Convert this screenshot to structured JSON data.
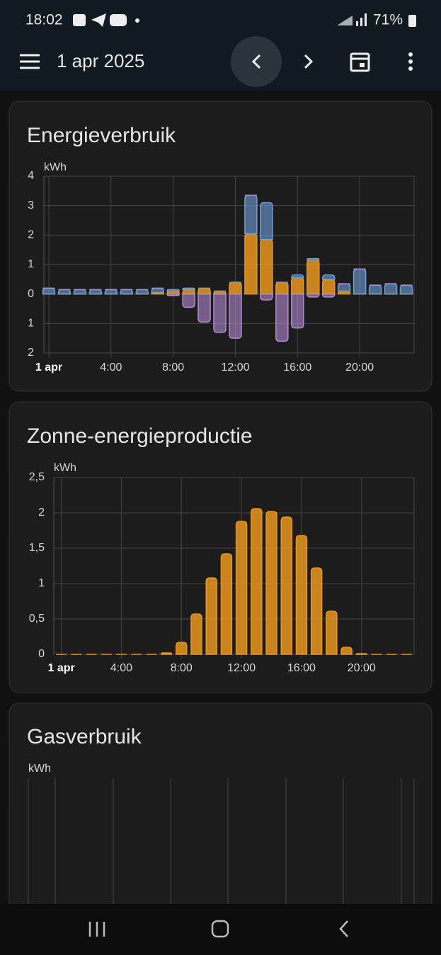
{
  "status_bar": {
    "time": "18:02",
    "battery": "71%"
  },
  "app_bar": {
    "title": "1 apr 2025"
  },
  "chart_data": [
    {
      "type": "bar",
      "stacked": true,
      "title": "Energieverbruik",
      "y_label": "kWh",
      "categories": [
        "1 apr",
        null,
        null,
        null,
        "4:00",
        null,
        null,
        null,
        "8:00",
        null,
        null,
        null,
        "12:00",
        null,
        null,
        null,
        "16:00",
        null,
        null,
        null,
        "20:00",
        null,
        null,
        null
      ],
      "series": [
        {
          "color": "#e8961e",
          "values": [
            0,
            0,
            0,
            0,
            0,
            0,
            0,
            0.05,
            0.1,
            0.15,
            0.2,
            0.1,
            0.4,
            2.05,
            1.85,
            0.4,
            0.55,
            1.15,
            0.5,
            0.1,
            0,
            0,
            0,
            0
          ]
        },
        {
          "color": "#6f9fd8",
          "values": [
            0.2,
            0.15,
            0.15,
            0.15,
            0.15,
            0.15,
            0.15,
            0.15,
            0.05,
            0.05,
            0,
            0,
            0,
            1.3,
            1.25,
            0,
            0.1,
            0.05,
            0.15,
            0.25,
            0.85,
            0.3,
            0.35,
            0.3
          ]
        },
        {
          "color": "#b48ad0",
          "values": [
            0,
            0,
            0,
            0,
            0,
            0,
            0,
            0,
            -0.05,
            -0.45,
            -0.95,
            -1.3,
            -1.5,
            0,
            -0.2,
            -1.6,
            -1.15,
            -0.1,
            -0.1,
            0,
            0,
            0,
            0,
            0
          ]
        }
      ],
      "ylim": [
        -2,
        4
      ],
      "yticks": [
        {
          "value": -2,
          "label": "2"
        },
        {
          "value": -1,
          "label": "1"
        },
        0,
        1,
        2,
        3,
        4
      ],
      "grid": true
    },
    {
      "type": "bar",
      "title": "Zonne-energieproductie",
      "y_label": "kWh",
      "categories": [
        "1 apr",
        null,
        null,
        null,
        "4:00",
        null,
        null,
        null,
        "8:00",
        null,
        null,
        null,
        "12:00",
        null,
        null,
        null,
        "16:00",
        null,
        null,
        null,
        "20:00",
        null,
        null,
        null
      ],
      "series": [
        {
          "color": "#e8961e",
          "values": [
            0,
            0,
            0,
            0,
            0,
            0,
            0,
            0.02,
            0.17,
            0.57,
            1.08,
            1.42,
            1.88,
            2.06,
            2.02,
            1.94,
            1.68,
            1.22,
            0.61,
            0.1,
            0.01,
            0,
            0,
            0
          ]
        }
      ],
      "ylim": [
        0,
        2.5
      ],
      "yticks": [
        0,
        {
          "value": 0.5,
          "label": "0,5"
        },
        1,
        {
          "value": 1.5,
          "label": "1,5"
        },
        2,
        {
          "value": 2.5,
          "label": "2,5"
        }
      ],
      "grid": true
    },
    {
      "type": "bar",
      "title": "Gasverbruik",
      "y_label": "kWh"
    }
  ]
}
